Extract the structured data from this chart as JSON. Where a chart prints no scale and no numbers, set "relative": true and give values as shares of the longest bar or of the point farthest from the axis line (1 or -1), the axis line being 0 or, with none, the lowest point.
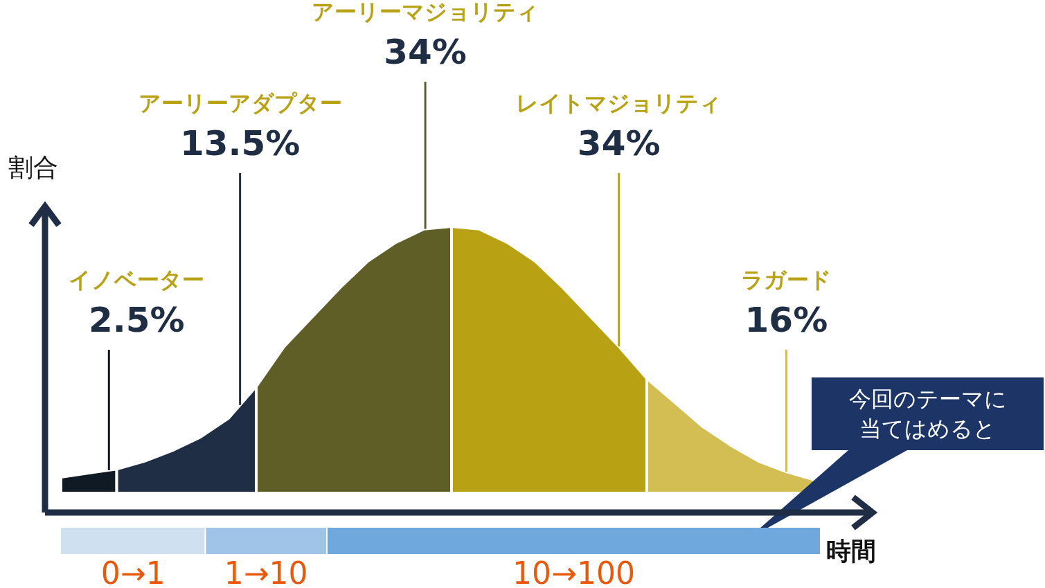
{
  "chart_data": [
    {
      "type": "area",
      "relative": true,
      "xlabel": "時間",
      "ylabel": "割合",
      "categories": [
        null,
        null,
        null,
        null,
        null,
        null,
        null,
        null,
        null,
        null,
        null,
        null,
        null,
        null,
        null,
        null,
        null,
        null,
        null,
        null,
        null,
        null,
        null,
        null,
        null,
        null,
        null,
        null,
        null
      ],
      "series": [
        {
          "color": "#0f1a24",
          "values": [
            0.06,
            0.075,
            0.09,
            null,
            null,
            null,
            null,
            null,
            null,
            null,
            null,
            null,
            null,
            null,
            null,
            null,
            null,
            null,
            null,
            null,
            null,
            null,
            null,
            null,
            null,
            null,
            null,
            null,
            null
          ]
        },
        {
          "color": "#1f2d45",
          "values": [
            null,
            null,
            0.09,
            0.12,
            0.16,
            0.21,
            0.28,
            0.4,
            null,
            null,
            null,
            null,
            null,
            null,
            null,
            null,
            null,
            null,
            null,
            null,
            null,
            null,
            null,
            null,
            null,
            null,
            null,
            null,
            null
          ]
        },
        {
          "color": "#605e27",
          "values": [
            null,
            null,
            null,
            null,
            null,
            null,
            null,
            0.4,
            0.55,
            0.66,
            0.77,
            0.87,
            0.94,
            0.99,
            1.0,
            null,
            null,
            null,
            null,
            null,
            null,
            null,
            null,
            null,
            null,
            null,
            null,
            null,
            null
          ]
        },
        {
          "color": "#b9a114",
          "values": [
            null,
            null,
            null,
            null,
            null,
            null,
            null,
            null,
            null,
            null,
            null,
            null,
            null,
            null,
            1.0,
            0.99,
            0.94,
            0.87,
            0.77,
            0.66,
            0.55,
            0.43,
            null,
            null,
            null,
            null,
            null,
            null,
            null
          ]
        },
        {
          "color": "#d2be52",
          "values": [
            null,
            null,
            null,
            null,
            null,
            null,
            null,
            null,
            null,
            null,
            null,
            null,
            null,
            null,
            null,
            null,
            null,
            null,
            null,
            null,
            null,
            0.43,
            0.34,
            0.25,
            0.18,
            0.12,
            0.08,
            0.05,
            null
          ]
        }
      ],
      "annotations": [
        "イノベーター",
        "2.5%",
        "アーリーアダプター",
        "13.5%",
        "アーリーマジョリティ",
        "34%",
        "レイトマジョリティ",
        "34%",
        "ラガード",
        "16%",
        "今回のテーマに当てはめると"
      ]
    },
    {
      "type": "bar",
      "orientation": "horizontal",
      "stacked": true,
      "relative": true,
      "categories": [
        null
      ],
      "series": [
        {
          "name": "0→1",
          "color": "#cfe0f1",
          "values": [
            0.19
          ]
        },
        {
          "name": "1→10",
          "color": "#9fc4e8",
          "values": [
            0.16
          ]
        },
        {
          "name": "10→100",
          "color": "#6fa8dc",
          "values": [
            0.65
          ]
        }
      ]
    }
  ]
}
